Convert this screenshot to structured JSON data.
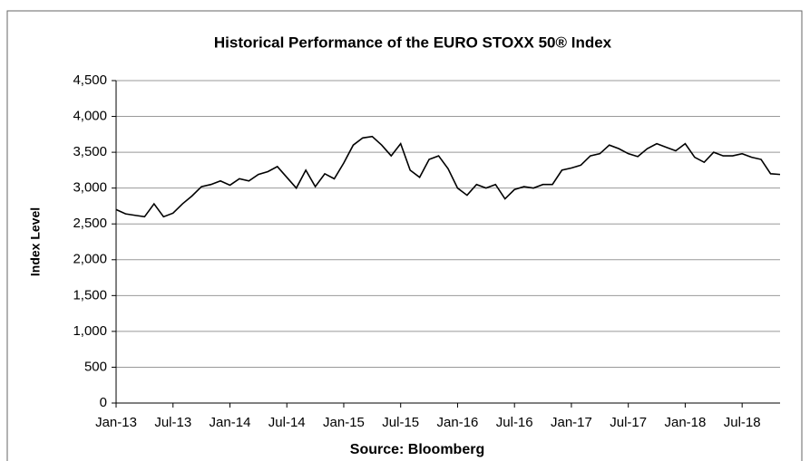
{
  "chart_data": {
    "type": "line",
    "title": "Historical Performance of the EURO STOXX 50® Index",
    "ylabel": "Index Level",
    "xlabel": "Source: Bloomberg",
    "x": [
      "2013-01",
      "2013-02",
      "2013-03",
      "2013-04",
      "2013-05",
      "2013-06",
      "2013-07",
      "2013-08",
      "2013-09",
      "2013-10",
      "2013-11",
      "2013-12",
      "2014-01",
      "2014-02",
      "2014-03",
      "2014-04",
      "2014-05",
      "2014-06",
      "2014-07",
      "2014-08",
      "2014-09",
      "2014-10",
      "2014-11",
      "2014-12",
      "2015-01",
      "2015-02",
      "2015-03",
      "2015-04",
      "2015-05",
      "2015-06",
      "2015-07",
      "2015-08",
      "2015-09",
      "2015-10",
      "2015-11",
      "2015-12",
      "2016-01",
      "2016-02",
      "2016-03",
      "2016-04",
      "2016-05",
      "2016-06",
      "2016-07",
      "2016-08",
      "2016-09",
      "2016-10",
      "2016-11",
      "2016-12",
      "2017-01",
      "2017-02",
      "2017-03",
      "2017-04",
      "2017-05",
      "2017-06",
      "2017-07",
      "2017-08",
      "2017-09",
      "2017-10",
      "2017-11",
      "2017-12",
      "2018-01",
      "2018-02",
      "2018-03",
      "2018-04",
      "2018-05",
      "2018-06",
      "2018-07",
      "2018-08",
      "2018-09",
      "2018-10",
      "2018-11"
    ],
    "series": [
      {
        "name": "EURO STOXX 50",
        "color": "#000000",
        "values": [
          2700,
          2640,
          2620,
          2600,
          2780,
          2600,
          2650,
          2780,
          2890,
          3020,
          3050,
          3100,
          3040,
          3130,
          3100,
          3190,
          3230,
          3300,
          3150,
          3000,
          3250,
          3020,
          3200,
          3130,
          3350,
          3600,
          3700,
          3720,
          3600,
          3450,
          3620,
          3250,
          3150,
          3400,
          3450,
          3270,
          3000,
          2900,
          3050,
          3000,
          3050,
          2850,
          2980,
          3020,
          3000,
          3050,
          3050,
          3250,
          3280,
          3320,
          3450,
          3480,
          3600,
          3550,
          3480,
          3440,
          3550,
          3620,
          3570,
          3520,
          3620,
          3430,
          3360,
          3500,
          3450,
          3450,
          3480,
          3430,
          3400,
          3200,
          3190
        ]
      }
    ],
    "xlim": [
      "2013-01",
      "2018-11"
    ],
    "xticks": [
      {
        "value": "2013-01",
        "label": "Jan-13"
      },
      {
        "value": "2013-07",
        "label": "Jul-13"
      },
      {
        "value": "2014-01",
        "label": "Jan-14"
      },
      {
        "value": "2014-07",
        "label": "Jul-14"
      },
      {
        "value": "2015-01",
        "label": "Jan-15"
      },
      {
        "value": "2015-07",
        "label": "Jul-15"
      },
      {
        "value": "2016-01",
        "label": "Jan-16"
      },
      {
        "value": "2016-07",
        "label": "Jul-16"
      },
      {
        "value": "2017-01",
        "label": "Jan-17"
      },
      {
        "value": "2017-07",
        "label": "Jul-17"
      },
      {
        "value": "2018-01",
        "label": "Jan-18"
      },
      {
        "value": "2018-07",
        "label": "Jul-18"
      }
    ],
    "ylim": [
      0,
      4500
    ],
    "yticks": [
      0,
      500,
      {
        "value": 1000,
        "label": "1,000"
      },
      {
        "value": 1500,
        "label": "1,500"
      },
      {
        "value": 2000,
        "label": "2,000"
      },
      {
        "value": 2500,
        "label": "2,500"
      },
      {
        "value": 3000,
        "label": "3,000"
      },
      {
        "value": 3500,
        "label": "3,500"
      },
      {
        "value": 4000,
        "label": "4,000"
      },
      {
        "value": 4500,
        "label": "4,500"
      }
    ],
    "grid": true
  }
}
